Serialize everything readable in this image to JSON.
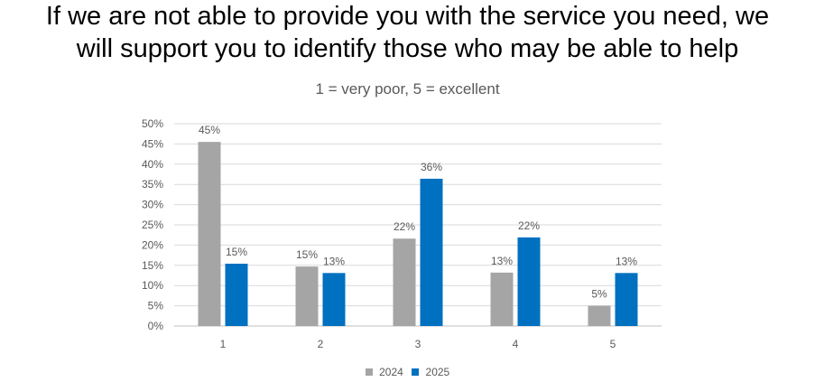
{
  "title": {
    "line1": "If we are not able to provide you with the service you need, we",
    "line2": "will support you to identify those who may be able to help"
  },
  "chart_data": {
    "type": "bar",
    "subtitle": "1 = very poor, 5 = excellent",
    "categories": [
      "1",
      "2",
      "3",
      "4",
      "5"
    ],
    "series": [
      {
        "name": "2024",
        "color": "#a5a5a5",
        "values": [
          45,
          15,
          22,
          13,
          5
        ],
        "labels": [
          "45%",
          "15%",
          "22%",
          "13%",
          "5%"
        ]
      },
      {
        "name": "2025",
        "color": "#0070c0",
        "values": [
          15,
          13,
          36,
          22,
          13
        ],
        "labels": [
          "15%",
          "13%",
          "36%",
          "22%",
          "13%"
        ]
      }
    ],
    "bar_values_precise": [
      [
        45.5,
        14.7,
        21.6,
        13.2,
        5.0
      ],
      [
        15.4,
        13.1,
        36.4,
        21.9,
        13.1
      ]
    ],
    "ylim": [
      0,
      50
    ],
    "yticks": [
      "0%",
      "5%",
      "10%",
      "15%",
      "20%",
      "25%",
      "30%",
      "35%",
      "40%",
      "45%",
      "50%"
    ],
    "grid": true,
    "legend": "bottom-center"
  }
}
